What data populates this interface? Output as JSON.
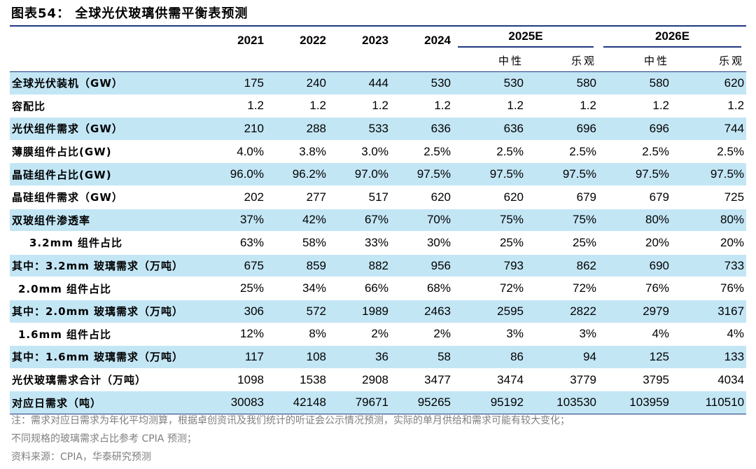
{
  "figure": {
    "label": "图表54：",
    "title": "全球光伏玻璃供需平衡表预测"
  },
  "table": {
    "years": [
      "2021",
      "2022",
      "2023",
      "2024"
    ],
    "groups": [
      "2025E",
      "2026E"
    ],
    "subheaders": [
      "中性",
      "乐观",
      "中性",
      "乐观"
    ],
    "rows": [
      {
        "label": "全球光伏装机（GW）",
        "values": [
          "175",
          "240",
          "444",
          "530",
          "530",
          "580",
          "580",
          "620"
        ]
      },
      {
        "label": "容配比",
        "values": [
          "1.2",
          "1.2",
          "1.2",
          "1.2",
          "1.2",
          "1.2",
          "1.2",
          "1.2"
        ]
      },
      {
        "label": "光伏组件需求（GW）",
        "values": [
          "210",
          "288",
          "533",
          "636",
          "636",
          "696",
          "696",
          "744"
        ]
      },
      {
        "label": "薄膜组件占比(GW)",
        "values": [
          "4.0%",
          "3.8%",
          "3.0%",
          "2.5%",
          "2.5%",
          "2.5%",
          "2.5%",
          "2.5%"
        ]
      },
      {
        "label": "晶硅组件占比(GW)",
        "values": [
          "96.0%",
          "96.2%",
          "97.0%",
          "97.5%",
          "97.5%",
          "97.5%",
          "97.5%",
          "97.5%"
        ]
      },
      {
        "label": "晶硅组件需求（GW）",
        "values": [
          "202",
          "277",
          "517",
          "620",
          "620",
          "679",
          "679",
          "725"
        ]
      },
      {
        "label": "双玻组件渗透率",
        "values": [
          "37%",
          "42%",
          "67%",
          "70%",
          "75%",
          "75%",
          "80%",
          "80%"
        ]
      },
      {
        "label": "3.2mm 组件占比",
        "values": [
          "63%",
          "58%",
          "33%",
          "30%",
          "25%",
          "25%",
          "20%",
          "20%"
        ]
      },
      {
        "label": "其中：3.2mm 玻璃需求（万吨）",
        "values": [
          "675",
          "859",
          "882",
          "956",
          "793",
          "862",
          "690",
          "733"
        ]
      },
      {
        "label": "2.0mm 组件占比",
        "values": [
          "25%",
          "34%",
          "66%",
          "68%",
          "72%",
          "72%",
          "76%",
          "76%"
        ]
      },
      {
        "label": "其中：2.0mm 玻璃需求（万吨）",
        "values": [
          "306",
          "572",
          "1989",
          "2463",
          "2595",
          "2822",
          "2979",
          "3167"
        ]
      },
      {
        "label": "1.6mm 组件占比",
        "values": [
          "12%",
          "8%",
          "2%",
          "2%",
          "3%",
          "3%",
          "4%",
          "4%"
        ]
      },
      {
        "label": "其中：1.6mm 玻璃需求（万吨）",
        "values": [
          "117",
          "108",
          "36",
          "58",
          "86",
          "94",
          "125",
          "133"
        ]
      },
      {
        "label": "光伏玻璃需求合计（万吨）",
        "values": [
          "1098",
          "1538",
          "2908",
          "3477",
          "3474",
          "3779",
          "3795",
          "4034"
        ]
      },
      {
        "label": "对应日需求（吨）",
        "values": [
          "30083",
          "42148",
          "79671",
          "95265",
          "95192",
          "103530",
          "103959",
          "110510"
        ]
      }
    ]
  },
  "notes": {
    "line1": "注：需求对应日需求为年化平均测算，根据卓创资讯及我们统计的听证会公示情况预测，实际的单月供给和需求可能有较大变化；",
    "line2": "不同规格的玻璃需求占比参考 CPIA 预测；",
    "source": "资料来源：CPIA，华泰研究预测"
  },
  "colors": {
    "row_shade": "#c3e6f5",
    "rule": "#1f3a80",
    "note_text": "#7f7f7f"
  }
}
